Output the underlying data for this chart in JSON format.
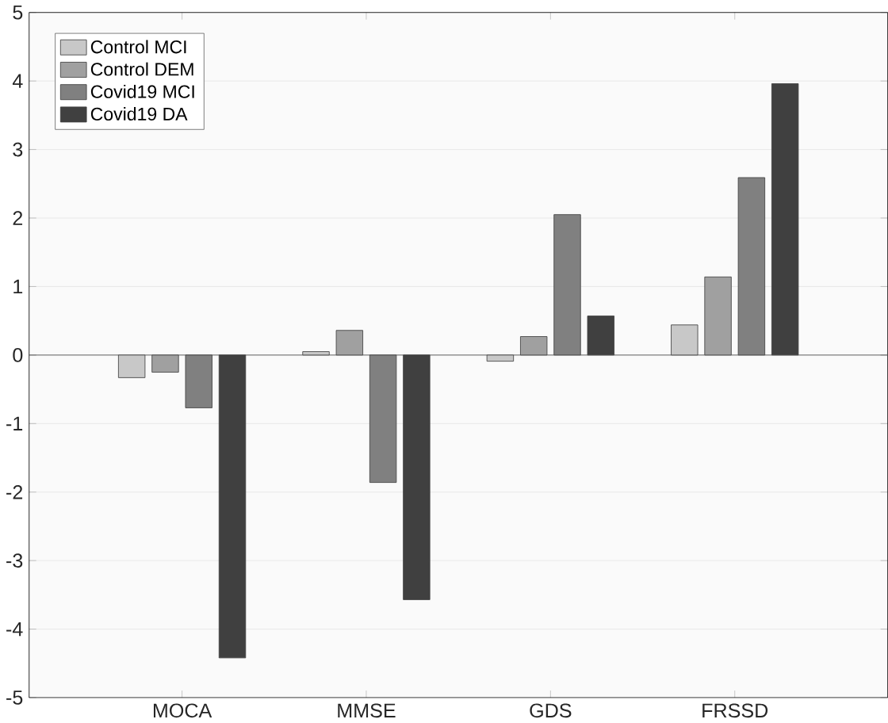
{
  "chart_data": {
    "type": "bar",
    "categories": [
      "MOCA",
      "MMSE",
      "GDS",
      "FRSSD"
    ],
    "series": [
      {
        "name": "Control MCI",
        "color": "#c8c8c8",
        "values": [
          -0.33,
          0.05,
          -0.09,
          0.44
        ]
      },
      {
        "name": "Control DEM",
        "color": "#a0a0a0",
        "values": [
          -0.25,
          0.36,
          0.27,
          1.14
        ]
      },
      {
        "name": "Covid19 MCI",
        "color": "#808080",
        "values": [
          -0.77,
          -1.86,
          2.05,
          2.59
        ]
      },
      {
        "name": "Covid19 DA",
        "color": "#404040",
        "values": [
          -4.42,
          -3.57,
          0.57,
          3.96
        ]
      }
    ],
    "ylim": [
      -5,
      5
    ],
    "yticks": [
      -5,
      -4,
      -3,
      -2,
      -1,
      0,
      1,
      2,
      3,
      4,
      5
    ],
    "grid": "y",
    "legend": "top left"
  }
}
